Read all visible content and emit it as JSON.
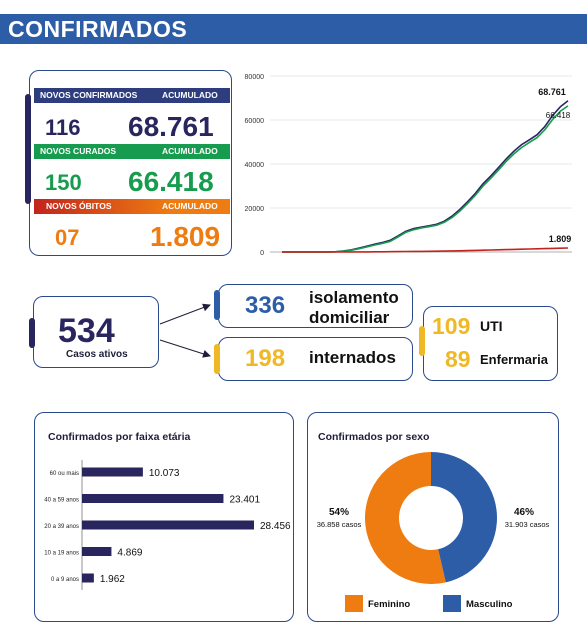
{
  "header": {
    "title": "CONFIRMADOS"
  },
  "colors": {
    "navy": "#29255e",
    "green": "#179c4f",
    "orange": "#ee7c11",
    "blue": "#2e5da8",
    "red": "#c2241d",
    "yellow": "#f0b824"
  },
  "summary": {
    "confirmados": {
      "new_label": "NOVOS CONFIRMADOS",
      "acc_label": "ACUMULADO",
      "new_value": "116",
      "acc_value": "68.761"
    },
    "curados": {
      "new_label": "NOVOS CURADOS",
      "acc_label": "ACUMULADO",
      "new_value": "150",
      "acc_value": "66.418"
    },
    "obitos": {
      "new_label": "NOVOS ÓBITOS",
      "acc_label": "ACUMULADO",
      "new_value": "07",
      "acc_value": "1.809"
    }
  },
  "active": {
    "total": "534",
    "total_label": "Casos ativos",
    "isolation_value": "336",
    "isolation_label_1": "isolamento",
    "isolation_label_2": "domiciliar",
    "hosp_value": "198",
    "hosp_label": "internados",
    "uti_value": "109",
    "uti_label": "UTI",
    "ward_value": "89",
    "ward_label": "Enfermaria"
  },
  "chart_data": [
    {
      "type": "line",
      "title": "",
      "ylim": [
        0,
        80000
      ],
      "y_ticks": [
        "0",
        "20000",
        "40000",
        "60000",
        "80000"
      ],
      "grid": true,
      "series": [
        {
          "key": "confirmados",
          "color": "#29255e",
          "label": "68.761",
          "values": [
            0,
            0,
            0,
            0,
            0,
            0,
            0,
            150,
            500,
            1000,
            1800,
            2700,
            3600,
            4300,
            5300,
            7300,
            9400,
            10600,
            11300,
            11900,
            12600,
            14000,
            16300,
            19300,
            22800,
            26600,
            31000,
            34500,
            38300,
            42300,
            45800,
            48800,
            51000,
            53300,
            57000,
            62000,
            66000,
            68761
          ]
        },
        {
          "key": "curados",
          "color": "#179c4f",
          "label": "66.418",
          "values": [
            0,
            0,
            0,
            0,
            0,
            0,
            0,
            80,
            350,
            800,
            1500,
            2300,
            3200,
            3900,
            4800,
            6800,
            8900,
            10100,
            10900,
            11500,
            12200,
            13500,
            15700,
            18600,
            22000,
            25700,
            30000,
            33500,
            37200,
            41200,
            44600,
            47500,
            49800,
            52000,
            55500,
            60200,
            64000,
            66418
          ]
        },
        {
          "key": "obitos",
          "color": "#c2241d",
          "label": "1.809",
          "values": [
            0,
            0,
            0,
            0,
            0,
            0,
            0,
            5,
            15,
            25,
            40,
            60,
            80,
            100,
            130,
            170,
            210,
            250,
            290,
            330,
            370,
            420,
            480,
            550,
            630,
            720,
            810,
            900,
            990,
            1080,
            1170,
            1260,
            1350,
            1440,
            1540,
            1640,
            1730,
            1809
          ]
        }
      ]
    },
    {
      "type": "bar",
      "title": "Confirmados por faixa etária",
      "categories": [
        "60 ou mais",
        "40 a 59 anos",
        "20 a 39 anos",
        "10 a 19 anos",
        "0 a 9 anos"
      ],
      "values": [
        10073,
        23401,
        28456,
        4869,
        1962
      ],
      "value_labels": [
        "10.073",
        "23.401",
        "28.456",
        "4.869",
        "1.962"
      ],
      "color": "#29255e"
    },
    {
      "type": "pie",
      "title": "Confirmados por sexo",
      "slices": [
        {
          "name": "Feminino",
          "value": 36858,
          "pct": "54%",
          "cases": "36.858 casos",
          "color": "#ee7c11"
        },
        {
          "name": "Masculino",
          "value": 31903,
          "pct": "46%",
          "cases": "31.903 casos",
          "color": "#2e5da8"
        }
      ]
    }
  ]
}
